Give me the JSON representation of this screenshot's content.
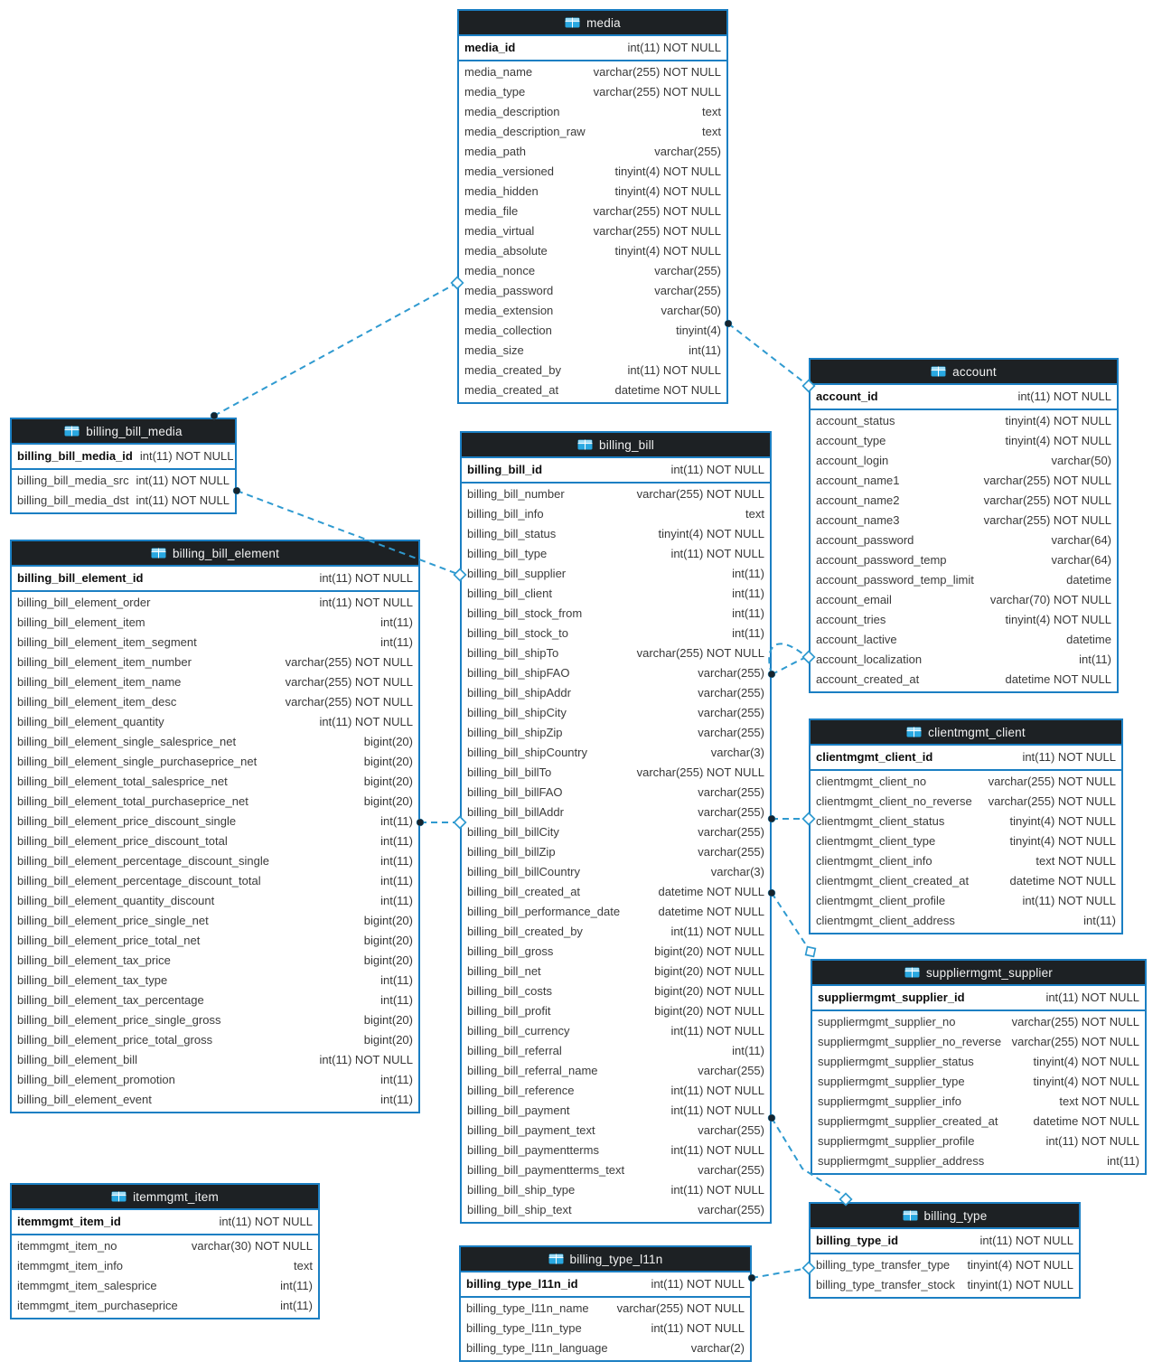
{
  "diagram": {
    "kind": "database-er-diagram",
    "colors": {
      "table_border": "#1b7fc3",
      "header_background": "#1d2124",
      "connector_line": "#2f9ad0",
      "table_icon_blue": "#29a8e1"
    }
  },
  "tables": [
    {
      "name": "media",
      "pk": {
        "field": "media_id",
        "type": "int(11) NOT NULL"
      },
      "fields": [
        {
          "field": "media_name",
          "type": "varchar(255) NOT NULL"
        },
        {
          "field": "media_type",
          "type": "varchar(255) NOT NULL"
        },
        {
          "field": "media_description",
          "type": "text"
        },
        {
          "field": "media_description_raw",
          "type": "text"
        },
        {
          "field": "media_path",
          "type": "varchar(255)"
        },
        {
          "field": "media_versioned",
          "type": "tinyint(4) NOT NULL"
        },
        {
          "field": "media_hidden",
          "type": "tinyint(4) NOT NULL"
        },
        {
          "field": "media_file",
          "type": "varchar(255) NOT NULL"
        },
        {
          "field": "media_virtual",
          "type": "varchar(255) NOT NULL"
        },
        {
          "field": "media_absolute",
          "type": "tinyint(4) NOT NULL"
        },
        {
          "field": "media_nonce",
          "type": "varchar(255)"
        },
        {
          "field": "media_password",
          "type": "varchar(255)"
        },
        {
          "field": "media_extension",
          "type": "varchar(50)"
        },
        {
          "field": "media_collection",
          "type": "tinyint(4)"
        },
        {
          "field": "media_size",
          "type": "int(11)"
        },
        {
          "field": "media_created_by",
          "type": "int(11) NOT NULL"
        },
        {
          "field": "media_created_at",
          "type": "datetime NOT NULL"
        }
      ]
    },
    {
      "name": "billing_bill",
      "pk": {
        "field": "billing_bill_id",
        "type": "int(11) NOT NULL"
      },
      "fields": [
        {
          "field": "billing_bill_number",
          "type": "varchar(255) NOT NULL"
        },
        {
          "field": "billing_bill_info",
          "type": "text"
        },
        {
          "field": "billing_bill_status",
          "type": "tinyint(4) NOT NULL"
        },
        {
          "field": "billing_bill_type",
          "type": "int(11) NOT NULL"
        },
        {
          "field": "billing_bill_supplier",
          "type": "int(11)"
        },
        {
          "field": "billing_bill_client",
          "type": "int(11)"
        },
        {
          "field": "billing_bill_stock_from",
          "type": "int(11)"
        },
        {
          "field": "billing_bill_stock_to",
          "type": "int(11)"
        },
        {
          "field": "billing_bill_shipTo",
          "type": "varchar(255) NOT NULL"
        },
        {
          "field": "billing_bill_shipFAO",
          "type": "varchar(255)"
        },
        {
          "field": "billing_bill_shipAddr",
          "type": "varchar(255)"
        },
        {
          "field": "billing_bill_shipCity",
          "type": "varchar(255)"
        },
        {
          "field": "billing_bill_shipZip",
          "type": "varchar(255)"
        },
        {
          "field": "billing_bill_shipCountry",
          "type": "varchar(3)"
        },
        {
          "field": "billing_bill_billTo",
          "type": "varchar(255) NOT NULL"
        },
        {
          "field": "billing_bill_billFAO",
          "type": "varchar(255)"
        },
        {
          "field": "billing_bill_billAddr",
          "type": "varchar(255)"
        },
        {
          "field": "billing_bill_billCity",
          "type": "varchar(255)"
        },
        {
          "field": "billing_bill_billZip",
          "type": "varchar(255)"
        },
        {
          "field": "billing_bill_billCountry",
          "type": "varchar(3)"
        },
        {
          "field": "billing_bill_created_at",
          "type": "datetime NOT NULL"
        },
        {
          "field": "billing_bill_performance_date",
          "type": "datetime NOT NULL"
        },
        {
          "field": "billing_bill_created_by",
          "type": "int(11) NOT NULL"
        },
        {
          "field": "billing_bill_gross",
          "type": "bigint(20) NOT NULL"
        },
        {
          "field": "billing_bill_net",
          "type": "bigint(20) NOT NULL"
        },
        {
          "field": "billing_bill_costs",
          "type": "bigint(20) NOT NULL"
        },
        {
          "field": "billing_bill_profit",
          "type": "bigint(20) NOT NULL"
        },
        {
          "field": "billing_bill_currency",
          "type": "int(11) NOT NULL"
        },
        {
          "field": "billing_bill_referral",
          "type": "int(11)"
        },
        {
          "field": "billing_bill_referral_name",
          "type": "varchar(255)"
        },
        {
          "field": "billing_bill_reference",
          "type": "int(11) NOT NULL"
        },
        {
          "field": "billing_bill_payment",
          "type": "int(11) NOT NULL"
        },
        {
          "field": "billing_bill_payment_text",
          "type": "varchar(255)"
        },
        {
          "field": "billing_bill_paymentterms",
          "type": "int(11) NOT NULL"
        },
        {
          "field": "billing_bill_paymentterms_text",
          "type": "varchar(255)"
        },
        {
          "field": "billing_bill_ship_type",
          "type": "int(11) NOT NULL"
        },
        {
          "field": "billing_bill_ship_text",
          "type": "varchar(255)"
        }
      ]
    },
    {
      "name": "billing_bill_media",
      "pk": {
        "field": "billing_bill_media_id",
        "type": "int(11) NOT NULL"
      },
      "fields": [
        {
          "field": "billing_bill_media_src",
          "type": "int(11) NOT NULL"
        },
        {
          "field": "billing_bill_media_dst",
          "type": "int(11) NOT NULL"
        }
      ]
    },
    {
      "name": "billing_bill_element",
      "pk": {
        "field": "billing_bill_element_id",
        "type": "int(11) NOT NULL"
      },
      "fields": [
        {
          "field": "billing_bill_element_order",
          "type": "int(11) NOT NULL"
        },
        {
          "field": "billing_bill_element_item",
          "type": "int(11)"
        },
        {
          "field": "billing_bill_element_item_segment",
          "type": "int(11)"
        },
        {
          "field": "billing_bill_element_item_number",
          "type": "varchar(255) NOT NULL"
        },
        {
          "field": "billing_bill_element_item_name",
          "type": "varchar(255) NOT NULL"
        },
        {
          "field": "billing_bill_element_item_desc",
          "type": "varchar(255) NOT NULL"
        },
        {
          "field": "billing_bill_element_quantity",
          "type": "int(11) NOT NULL"
        },
        {
          "field": "billing_bill_element_single_salesprice_net",
          "type": "bigint(20)"
        },
        {
          "field": "billing_bill_element_single_purchaseprice_net",
          "type": "bigint(20)"
        },
        {
          "field": "billing_bill_element_total_salesprice_net",
          "type": "bigint(20)"
        },
        {
          "field": "billing_bill_element_total_purchaseprice_net",
          "type": "bigint(20)"
        },
        {
          "field": "billing_bill_element_price_discount_single",
          "type": "int(11)"
        },
        {
          "field": "billing_bill_element_price_discount_total",
          "type": "int(11)"
        },
        {
          "field": "billing_bill_element_percentage_discount_single",
          "type": "int(11)"
        },
        {
          "field": "billing_bill_element_percentage_discount_total",
          "type": "int(11)"
        },
        {
          "field": "billing_bill_element_quantity_discount",
          "type": "int(11)"
        },
        {
          "field": "billing_bill_element_price_single_net",
          "type": "bigint(20)"
        },
        {
          "field": "billing_bill_element_price_total_net",
          "type": "bigint(20)"
        },
        {
          "field": "billing_bill_element_tax_price",
          "type": "bigint(20)"
        },
        {
          "field": "billing_bill_element_tax_type",
          "type": "int(11)"
        },
        {
          "field": "billing_bill_element_tax_percentage",
          "type": "int(11)"
        },
        {
          "field": "billing_bill_element_price_single_gross",
          "type": "bigint(20)"
        },
        {
          "field": "billing_bill_element_price_total_gross",
          "type": "bigint(20)"
        },
        {
          "field": "billing_bill_element_bill",
          "type": "int(11) NOT NULL"
        },
        {
          "field": "billing_bill_element_promotion",
          "type": "int(11)"
        },
        {
          "field": "billing_bill_element_event",
          "type": "int(11)"
        }
      ]
    },
    {
      "name": "itemmgmt_item",
      "pk": {
        "field": "itemmgmt_item_id",
        "type": "int(11) NOT NULL"
      },
      "fields": [
        {
          "field": "itemmgmt_item_no",
          "type": "varchar(30) NOT NULL"
        },
        {
          "field": "itemmgmt_item_info",
          "type": "text"
        },
        {
          "field": "itemmgmt_item_salesprice",
          "type": "int(11)"
        },
        {
          "field": "itemmgmt_item_purchaseprice",
          "type": "int(11)"
        }
      ]
    },
    {
      "name": "account",
      "pk": {
        "field": "account_id",
        "type": "int(11) NOT NULL"
      },
      "fields": [
        {
          "field": "account_status",
          "type": "tinyint(4) NOT NULL"
        },
        {
          "field": "account_type",
          "type": "tinyint(4) NOT NULL"
        },
        {
          "field": "account_login",
          "type": "varchar(50)"
        },
        {
          "field": "account_name1",
          "type": "varchar(255) NOT NULL"
        },
        {
          "field": "account_name2",
          "type": "varchar(255) NOT NULL"
        },
        {
          "field": "account_name3",
          "type": "varchar(255) NOT NULL"
        },
        {
          "field": "account_password",
          "type": "varchar(64)"
        },
        {
          "field": "account_password_temp",
          "type": "varchar(64)"
        },
        {
          "field": "account_password_temp_limit",
          "type": "datetime"
        },
        {
          "field": "account_email",
          "type": "varchar(70) NOT NULL"
        },
        {
          "field": "account_tries",
          "type": "tinyint(4) NOT NULL"
        },
        {
          "field": "account_lactive",
          "type": "datetime"
        },
        {
          "field": "account_localization",
          "type": "int(11)"
        },
        {
          "field": "account_created_at",
          "type": "datetime NOT NULL"
        }
      ]
    },
    {
      "name": "clientmgmt_client",
      "pk": {
        "field": "clientmgmt_client_id",
        "type": "int(11) NOT NULL"
      },
      "fields": [
        {
          "field": "clientmgmt_client_no",
          "type": "varchar(255) NOT NULL"
        },
        {
          "field": "clientmgmt_client_no_reverse",
          "type": "varchar(255) NOT NULL"
        },
        {
          "field": "clientmgmt_client_status",
          "type": "tinyint(4) NOT NULL"
        },
        {
          "field": "clientmgmt_client_type",
          "type": "tinyint(4) NOT NULL"
        },
        {
          "field": "clientmgmt_client_info",
          "type": "text NOT NULL"
        },
        {
          "field": "clientmgmt_client_created_at",
          "type": "datetime NOT NULL"
        },
        {
          "field": "clientmgmt_client_profile",
          "type": "int(11) NOT NULL"
        },
        {
          "field": "clientmgmt_client_address",
          "type": "int(11)"
        }
      ]
    },
    {
      "name": "suppliermgmt_supplier",
      "pk": {
        "field": "suppliermgmt_supplier_id",
        "type": "int(11) NOT NULL"
      },
      "fields": [
        {
          "field": "suppliermgmt_supplier_no",
          "type": "varchar(255) NOT NULL"
        },
        {
          "field": "suppliermgmt_supplier_no_reverse",
          "type": "varchar(255) NOT NULL"
        },
        {
          "field": "suppliermgmt_supplier_status",
          "type": "tinyint(4) NOT NULL"
        },
        {
          "field": "suppliermgmt_supplier_type",
          "type": "tinyint(4) NOT NULL"
        },
        {
          "field": "suppliermgmt_supplier_info",
          "type": "text NOT NULL"
        },
        {
          "field": "suppliermgmt_supplier_created_at",
          "type": "datetime NOT NULL"
        },
        {
          "field": "suppliermgmt_supplier_profile",
          "type": "int(11) NOT NULL"
        },
        {
          "field": "suppliermgmt_supplier_address",
          "type": "int(11)"
        }
      ]
    },
    {
      "name": "billing_type",
      "pk": {
        "field": "billing_type_id",
        "type": "int(11) NOT NULL"
      },
      "fields": [
        {
          "field": "billing_type_transfer_type",
          "type": "tinyint(4) NOT NULL"
        },
        {
          "field": "billing_type_transfer_stock",
          "type": "tinyint(1) NOT NULL"
        }
      ]
    },
    {
      "name": "billing_type_l11n",
      "pk": {
        "field": "billing_type_l11n_id",
        "type": "int(11) NOT NULL"
      },
      "fields": [
        {
          "field": "billing_type_l11n_name",
          "type": "varchar(255) NOT NULL"
        },
        {
          "field": "billing_type_l11n_type",
          "type": "int(11) NOT NULL"
        },
        {
          "field": "billing_type_l11n_language",
          "type": "varchar(2)"
        }
      ]
    }
  ],
  "relationships": [
    {
      "from": "billing_bill_media",
      "to": "media",
      "lines": 1
    },
    {
      "from": "billing_bill_media",
      "to": "billing_bill",
      "lines": 1
    },
    {
      "from": "billing_bill_element",
      "to": "billing_bill",
      "lines": 1
    },
    {
      "from": "media",
      "to": "account",
      "lines": 1
    },
    {
      "from": "billing_bill",
      "to": "account",
      "lines": 2
    },
    {
      "from": "billing_bill",
      "to": "clientmgmt_client",
      "lines": 1
    },
    {
      "from": "billing_bill",
      "to": "suppliermgmt_supplier",
      "lines": 1
    },
    {
      "from": "billing_bill",
      "to": "billing_type",
      "lines": 1
    },
    {
      "from": "billing_type_l11n",
      "to": "billing_type",
      "lines": 1
    }
  ]
}
